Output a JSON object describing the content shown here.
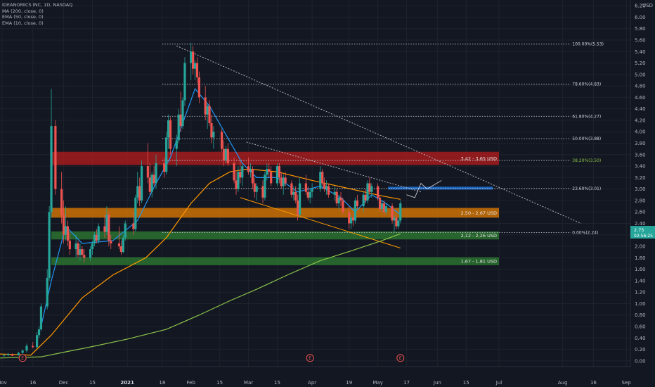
{
  "legend": {
    "symbol": "IDEANOMICS INC, 1D, NASDAQ",
    "ma200": "MA (200, close, 0)",
    "ema50": "EMA (50, close, 0)",
    "ema10": "EMA (10, close, 0)"
  },
  "currency": "USD",
  "price_badge": {
    "price": "2.75",
    "countdown": "02:56:25"
  },
  "colors": {
    "background": "#131722",
    "up": "#26a69a",
    "down": "#ef5350",
    "ma200": "#8bc34a",
    "ema50": "#ff9800",
    "ema10": "#2196f3",
    "zone_red": "#b71c1c",
    "zone_orange": "#e67e00",
    "zone_green": "#2e7d32",
    "zone_blue": "#1e6fd0"
  },
  "chart_data": {
    "type": "candlestick",
    "ylim": [
      -0.1,
      6.3
    ],
    "xlim": [
      "2020-10-31",
      "2021-09-03"
    ],
    "y_ticks": [
      "0.00",
      "0.20",
      "0.40",
      "0.60",
      "0.80",
      "1.00",
      "1.20",
      "1.40",
      "1.60",
      "1.80",
      "2.00",
      "2.20",
      "2.40",
      "2.60",
      "2.80",
      "3.00",
      "3.20",
      "3.40",
      "3.60",
      "3.80",
      "4.00",
      "4.20",
      "4.40",
      "4.60",
      "4.80",
      "5.00",
      "5.20",
      "5.40",
      "5.60",
      "5.80",
      "6.00",
      "6.20"
    ],
    "x_ticks": [
      {
        "label": "Nov",
        "date": "2020-11-01"
      },
      {
        "label": "16",
        "date": "2020-11-16"
      },
      {
        "label": "Dec",
        "date": "2020-12-01"
      },
      {
        "label": "15",
        "date": "2020-12-15"
      },
      {
        "label": "2021",
        "date": "2021-01-01"
      },
      {
        "label": "18",
        "date": "2021-01-18"
      },
      {
        "label": "Feb",
        "date": "2021-02-01"
      },
      {
        "label": "15",
        "date": "2021-02-15"
      },
      {
        "label": "Mar",
        "date": "2021-03-01"
      },
      {
        "label": "15",
        "date": "2021-03-15"
      },
      {
        "label": "Apr",
        "date": "2021-04-01"
      },
      {
        "label": "19",
        "date": "2021-04-19"
      },
      {
        "label": "May",
        "date": "2021-05-03"
      },
      {
        "label": "17",
        "date": "2021-05-17"
      },
      {
        "label": "Jun",
        "date": "2021-06-01"
      },
      {
        "label": "15",
        "date": "2021-06-15"
      },
      {
        "label": "Jul",
        "date": "2021-07-01"
      },
      {
        "label": "Aug",
        "date": "2021-08-01"
      },
      {
        "label": "16",
        "date": "2021-08-16"
      },
      {
        "label": "Sep",
        "date": "2021-09-01"
      }
    ],
    "candles": [
      [
        "2020-11-02",
        0.09,
        0.12,
        0.07,
        0.1
      ],
      [
        "2020-11-04",
        0.1,
        0.14,
        0.08,
        0.12
      ],
      [
        "2020-11-06",
        0.12,
        0.13,
        0.08,
        0.09
      ],
      [
        "2020-11-09",
        0.1,
        0.16,
        0.09,
        0.14
      ],
      [
        "2020-11-11",
        0.14,
        0.2,
        0.12,
        0.18
      ],
      [
        "2020-11-13",
        0.18,
        0.3,
        0.15,
        0.26
      ],
      [
        "2020-11-16",
        0.26,
        0.33,
        0.22,
        0.24
      ],
      [
        "2020-11-18",
        0.24,
        0.5,
        0.22,
        0.45
      ],
      [
        "2020-11-19",
        0.45,
        0.6,
        0.4,
        0.55
      ],
      [
        "2020-11-20",
        0.55,
        1.0,
        0.52,
        0.95
      ],
      [
        "2020-11-23",
        0.95,
        1.6,
        0.9,
        1.45
      ],
      [
        "2020-11-24",
        1.45,
        2.7,
        1.4,
        2.6
      ],
      [
        "2020-11-25",
        2.6,
        4.75,
        2.5,
        4.1
      ],
      [
        "2020-11-27",
        4.1,
        4.2,
        2.9,
        3.0
      ],
      [
        "2020-11-30",
        3.0,
        3.3,
        2.4,
        2.55
      ],
      [
        "2020-12-01",
        2.55,
        2.8,
        2.05,
        2.2
      ],
      [
        "2020-12-02",
        2.2,
        2.7,
        2.1,
        2.35
      ],
      [
        "2020-12-03",
        2.35,
        2.45,
        2.0,
        2.1
      ],
      [
        "2020-12-04",
        2.1,
        2.25,
        1.85,
        1.95
      ],
      [
        "2020-12-07",
        1.95,
        2.2,
        1.8,
        2.05
      ],
      [
        "2020-12-08",
        2.05,
        2.1,
        1.8,
        1.85
      ],
      [
        "2020-12-09",
        1.85,
        2.05,
        1.75,
        1.95
      ],
      [
        "2020-12-10",
        1.95,
        2.0,
        1.8,
        1.85
      ],
      [
        "2020-12-11",
        1.85,
        1.95,
        1.72,
        1.8
      ],
      [
        "2020-12-14",
        1.8,
        2.0,
        1.75,
        1.95
      ],
      [
        "2020-12-15",
        1.95,
        2.1,
        1.85,
        2.05
      ],
      [
        "2020-12-16",
        2.05,
        2.25,
        2.0,
        2.2
      ],
      [
        "2020-12-17",
        2.2,
        2.3,
        2.05,
        2.1
      ],
      [
        "2020-12-18",
        2.1,
        2.4,
        2.05,
        2.35
      ],
      [
        "2020-12-21",
        2.35,
        2.55,
        2.15,
        2.25
      ],
      [
        "2020-12-22",
        2.25,
        2.7,
        2.2,
        2.55
      ],
      [
        "2020-12-23",
        2.55,
        2.6,
        2.0,
        2.1
      ],
      [
        "2020-12-24",
        2.1,
        2.2,
        1.95,
        2.05
      ],
      [
        "2020-12-28",
        2.05,
        2.35,
        1.95,
        2.0
      ],
      [
        "2020-12-29",
        2.0,
        2.1,
        1.85,
        1.9
      ],
      [
        "2020-12-30",
        1.9,
        2.2,
        1.88,
        2.15
      ],
      [
        "2020-12-31",
        2.15,
        2.45,
        2.1,
        2.4
      ],
      [
        "2021-01-04",
        2.4,
        2.6,
        2.2,
        2.3
      ],
      [
        "2021-01-05",
        2.3,
        2.9,
        2.25,
        2.85
      ],
      [
        "2021-01-06",
        2.85,
        3.3,
        2.75,
        3.05
      ],
      [
        "2021-01-07",
        3.05,
        3.2,
        2.7,
        2.8
      ],
      [
        "2021-01-08",
        2.8,
        3.5,
        2.75,
        3.4
      ],
      [
        "2021-01-11",
        3.4,
        3.8,
        3.1,
        3.2
      ],
      [
        "2021-01-12",
        3.2,
        3.45,
        2.9,
        2.95
      ],
      [
        "2021-01-13",
        2.95,
        3.3,
        2.85,
        3.25
      ],
      [
        "2021-01-14",
        3.25,
        3.4,
        3.05,
        3.1
      ],
      [
        "2021-01-15",
        3.1,
        3.6,
        3.0,
        3.45
      ],
      [
        "2021-01-19",
        3.45,
        3.55,
        3.2,
        3.3
      ],
      [
        "2021-01-20",
        3.3,
        4.0,
        3.25,
        3.9
      ],
      [
        "2021-01-21",
        3.9,
        4.3,
        3.7,
        4.2
      ],
      [
        "2021-01-22",
        4.2,
        4.25,
        3.6,
        3.7
      ],
      [
        "2021-01-25",
        3.7,
        3.95,
        3.4,
        3.85
      ],
      [
        "2021-01-26",
        3.85,
        4.4,
        3.8,
        4.3
      ],
      [
        "2021-01-27",
        4.3,
        4.7,
        4.0,
        4.1
      ],
      [
        "2021-01-28",
        4.1,
        4.6,
        4.05,
        4.55
      ],
      [
        "2021-01-29",
        4.55,
        5.3,
        4.45,
        5.2
      ],
      [
        "2021-02-01",
        5.2,
        5.55,
        4.9,
        5.4
      ],
      [
        "2021-02-02",
        5.4,
        5.5,
        5.0,
        5.1
      ],
      [
        "2021-02-03",
        5.1,
        5.25,
        4.9,
        5.2
      ],
      [
        "2021-02-04",
        5.2,
        5.3,
        4.85,
        4.95
      ],
      [
        "2021-02-05",
        4.95,
        5.05,
        4.5,
        4.6
      ],
      [
        "2021-02-08",
        4.6,
        4.8,
        4.2,
        4.3
      ],
      [
        "2021-02-09",
        4.3,
        4.5,
        4.05,
        4.45
      ],
      [
        "2021-02-10",
        4.45,
        4.55,
        4.1,
        4.15
      ],
      [
        "2021-02-11",
        4.15,
        4.3,
        3.8,
        3.9
      ],
      [
        "2021-02-12",
        3.9,
        4.1,
        3.7,
        4.0
      ],
      [
        "2021-02-16",
        4.0,
        4.05,
        3.65,
        3.7
      ],
      [
        "2021-02-17",
        3.7,
        3.85,
        3.4,
        3.5
      ],
      [
        "2021-02-18",
        3.5,
        3.75,
        3.45,
        3.7
      ],
      [
        "2021-02-19",
        3.7,
        3.8,
        3.4,
        3.45
      ],
      [
        "2021-02-22",
        3.45,
        3.55,
        3.1,
        3.15
      ],
      [
        "2021-02-23",
        3.15,
        3.3,
        2.9,
        3.0
      ],
      [
        "2021-02-24",
        3.0,
        3.4,
        2.95,
        3.3
      ],
      [
        "2021-02-25",
        3.3,
        3.5,
        3.1,
        3.2
      ],
      [
        "2021-02-26",
        3.2,
        3.45,
        3.05,
        3.4
      ],
      [
        "2021-03-01",
        3.4,
        3.55,
        3.25,
        3.3
      ],
      [
        "2021-03-02",
        3.3,
        3.45,
        3.2,
        3.35
      ],
      [
        "2021-03-03",
        3.35,
        3.4,
        3.0,
        3.1
      ],
      [
        "2021-03-04",
        3.1,
        3.2,
        2.85,
        2.95
      ],
      [
        "2021-03-05",
        2.95,
        3.1,
        2.8,
        3.05
      ],
      [
        "2021-03-08",
        3.05,
        3.15,
        2.75,
        2.85
      ],
      [
        "2021-03-09",
        2.85,
        3.3,
        2.8,
        3.25
      ],
      [
        "2021-03-10",
        3.25,
        3.45,
        3.15,
        3.35
      ],
      [
        "2021-03-11",
        3.35,
        3.45,
        3.2,
        3.3
      ],
      [
        "2021-03-12",
        3.3,
        3.4,
        3.05,
        3.1
      ],
      [
        "2021-03-15",
        3.1,
        3.45,
        3.05,
        3.4
      ],
      [
        "2021-03-16",
        3.4,
        3.45,
        3.1,
        3.2
      ],
      [
        "2021-03-17",
        3.2,
        3.3,
        3.0,
        3.05
      ],
      [
        "2021-03-18",
        3.05,
        3.25,
        2.9,
        3.2
      ],
      [
        "2021-03-19",
        3.2,
        3.3,
        3.05,
        3.1
      ],
      [
        "2021-03-22",
        3.1,
        3.15,
        2.85,
        2.9
      ],
      [
        "2021-03-23",
        2.9,
        3.05,
        2.8,
        2.95
      ],
      [
        "2021-03-24",
        2.95,
        3.05,
        2.75,
        2.8
      ],
      [
        "2021-03-25",
        2.8,
        2.9,
        2.45,
        2.55
      ],
      [
        "2021-03-26",
        2.55,
        3.2,
        2.5,
        3.1
      ],
      [
        "2021-03-29",
        3.1,
        3.25,
        2.9,
        2.95
      ],
      [
        "2021-03-30",
        2.95,
        3.05,
        2.8,
        2.85
      ],
      [
        "2021-03-31",
        2.85,
        3.0,
        2.75,
        2.95
      ],
      [
        "2021-04-01",
        2.95,
        3.1,
        2.85,
        3.0
      ],
      [
        "2021-04-05",
        3.0,
        3.4,
        2.95,
        3.3
      ],
      [
        "2021-04-06",
        3.3,
        3.35,
        3.05,
        3.1
      ],
      [
        "2021-04-07",
        3.1,
        3.2,
        2.95,
        3.0
      ],
      [
        "2021-04-08",
        3.0,
        3.15,
        2.9,
        3.05
      ],
      [
        "2021-04-09",
        3.05,
        3.1,
        2.85,
        2.9
      ],
      [
        "2021-04-12",
        2.9,
        3.05,
        2.8,
        2.95
      ],
      [
        "2021-04-13",
        2.95,
        3.0,
        2.7,
        2.75
      ],
      [
        "2021-04-14",
        2.75,
        2.9,
        2.65,
        2.85
      ],
      [
        "2021-04-15",
        2.85,
        2.95,
        2.7,
        2.8
      ],
      [
        "2021-04-16",
        2.8,
        2.85,
        2.55,
        2.6
      ],
      [
        "2021-04-19",
        2.6,
        2.7,
        2.3,
        2.4
      ],
      [
        "2021-04-20",
        2.4,
        2.55,
        2.3,
        2.5
      ],
      [
        "2021-04-21",
        2.5,
        2.6,
        2.35,
        2.45
      ],
      [
        "2021-04-22",
        2.45,
        2.85,
        2.4,
        2.8
      ],
      [
        "2021-04-23",
        2.8,
        2.9,
        2.65,
        2.7
      ],
      [
        "2021-04-26",
        2.7,
        2.95,
        2.6,
        2.9
      ],
      [
        "2021-04-27",
        2.9,
        3.0,
        2.75,
        2.8
      ],
      [
        "2021-04-28",
        2.8,
        3.15,
        2.75,
        3.1
      ],
      [
        "2021-04-29",
        3.1,
        3.2,
        2.9,
        2.95
      ],
      [
        "2021-04-30",
        2.95,
        3.1,
        2.85,
        3.05
      ],
      [
        "2021-05-03",
        3.05,
        3.1,
        2.8,
        2.85
      ],
      [
        "2021-05-04",
        2.85,
        2.9,
        2.6,
        2.65
      ],
      [
        "2021-05-05",
        2.65,
        2.8,
        2.6,
        2.75
      ],
      [
        "2021-05-06",
        2.75,
        2.8,
        2.55,
        2.6
      ],
      [
        "2021-05-07",
        2.6,
        2.75,
        2.55,
        2.7
      ],
      [
        "2021-05-10",
        2.7,
        2.75,
        2.4,
        2.45
      ],
      [
        "2021-05-11",
        2.45,
        2.55,
        2.25,
        2.5
      ],
      [
        "2021-05-12",
        2.5,
        2.55,
        2.3,
        2.35
      ],
      [
        "2021-05-13",
        2.35,
        2.5,
        2.3,
        2.45
      ],
      [
        "2021-05-14",
        2.45,
        2.8,
        2.4,
        2.75
      ]
    ],
    "ma200": [
      [
        "2020-10-31",
        0.05
      ],
      [
        "2020-11-20",
        0.07
      ],
      [
        "2020-12-01",
        0.15
      ],
      [
        "2020-12-15",
        0.25
      ],
      [
        "2021-01-01",
        0.38
      ],
      [
        "2021-01-20",
        0.55
      ],
      [
        "2021-02-05",
        0.8
      ],
      [
        "2021-02-20",
        1.05
      ],
      [
        "2021-03-05",
        1.25
      ],
      [
        "2021-03-20",
        1.5
      ],
      [
        "2021-04-05",
        1.75
      ],
      [
        "2021-04-20",
        1.92
      ],
      [
        "2021-05-05",
        2.1
      ],
      [
        "2021-05-14",
        2.22
      ]
    ],
    "ema50": [
      [
        "2020-10-31",
        0.12
      ],
      [
        "2020-11-15",
        0.1
      ],
      [
        "2020-11-25",
        0.45
      ],
      [
        "2020-12-10",
        1.1
      ],
      [
        "2020-12-25",
        1.5
      ],
      [
        "2021-01-10",
        1.8
      ],
      [
        "2021-01-20",
        2.15
      ],
      [
        "2021-02-01",
        2.75
      ],
      [
        "2021-02-10",
        3.1
      ],
      [
        "2021-02-20",
        3.3
      ],
      [
        "2021-03-01",
        3.35
      ],
      [
        "2021-03-15",
        3.3
      ],
      [
        "2021-04-01",
        3.15
      ],
      [
        "2021-04-20",
        3.0
      ],
      [
        "2021-05-05",
        2.88
      ],
      [
        "2021-05-14",
        2.82
      ]
    ],
    "ema10": [
      [
        "2020-11-20",
        0.6
      ],
      [
        "2020-11-25",
        1.4
      ],
      [
        "2020-12-02",
        2.35
      ],
      [
        "2020-12-10",
        2.05
      ],
      [
        "2020-12-25",
        2.1
      ],
      [
        "2021-01-06",
        2.45
      ],
      [
        "2021-01-15",
        3.1
      ],
      [
        "2021-01-22",
        3.55
      ],
      [
        "2021-01-29",
        4.25
      ],
      [
        "2021-02-03",
        4.75
      ],
      [
        "2021-02-10",
        4.45
      ],
      [
        "2021-02-18",
        3.95
      ],
      [
        "2021-02-26",
        3.45
      ],
      [
        "2021-03-05",
        3.2
      ],
      [
        "2021-03-15",
        3.2
      ],
      [
        "2021-03-25",
        2.95
      ],
      [
        "2021-04-05",
        3.05
      ],
      [
        "2021-04-15",
        2.85
      ],
      [
        "2021-04-22",
        2.6
      ],
      [
        "2021-04-30",
        2.9
      ],
      [
        "2021-05-07",
        2.75
      ],
      [
        "2021-05-14",
        2.55
      ]
    ],
    "zones": [
      {
        "label": "3,42 - 3,65 USD",
        "low": 3.42,
        "high": 3.65,
        "color": "red",
        "from": "2020-11-25",
        "to": "2021-07-01"
      },
      {
        "label": "2,50 - 2,67 USD",
        "low": 2.5,
        "high": 2.67,
        "color": "orange",
        "from": "2020-11-25",
        "to": "2021-07-01"
      },
      {
        "label": "2,12 - 2,26 USD",
        "low": 2.12,
        "high": 2.26,
        "color": "green",
        "from": "2020-11-25",
        "to": "2021-07-01"
      },
      {
        "label": "1,67 - 1,81 USD",
        "low": 1.67,
        "high": 1.81,
        "color": "green",
        "from": "2020-11-25",
        "to": "2021-07-01"
      }
    ],
    "target_box": {
      "low": 2.99,
      "high": 3.04,
      "from": "2021-05-08",
      "to": "2021-06-28"
    },
    "fib_levels": [
      {
        "label": "100.00%(5.53)",
        "value": 5.53
      },
      {
        "label": "78.60%(4.83)",
        "value": 4.83
      },
      {
        "label": "61.80%(4.27)",
        "value": 4.27
      },
      {
        "label": "50.00%(3.88)",
        "value": 3.88
      },
      {
        "label": "38.20%(3.50)",
        "value": 3.5
      },
      {
        "label": "23.60%(3.01)",
        "value": 3.01
      },
      {
        "label": "0.00%(2.24)",
        "value": 2.24
      }
    ],
    "fib_from": "2021-01-18",
    "fib_to": "2021-08-05",
    "trendlines": [
      {
        "kind": "dotted",
        "color": "white",
        "from": [
          "2021-01-25",
          5.5
        ],
        "to": [
          "2021-08-10",
          2.4
        ]
      },
      {
        "kind": "dotted",
        "color": "white",
        "from": [
          "2021-02-28",
          3.82
        ],
        "to": [
          "2021-05-24",
          2.95
        ]
      },
      {
        "kind": "solid",
        "color": "orange",
        "from": [
          "2021-02-25",
          2.85
        ],
        "to": [
          "2021-05-14",
          1.97
        ]
      }
    ],
    "projection": [
      [
        "2021-05-17",
        2.9
      ],
      [
        "2021-05-21",
        2.85
      ],
      [
        "2021-05-24",
        3.1
      ],
      [
        "2021-05-27",
        3.0
      ],
      [
        "2021-06-03",
        3.15
      ]
    ],
    "earnings_markers": [
      {
        "label": "E",
        "date": "2020-11-11"
      },
      {
        "label": "E",
        "date": "2021-03-31"
      },
      {
        "label": "E",
        "date": "2021-05-14"
      }
    ]
  }
}
